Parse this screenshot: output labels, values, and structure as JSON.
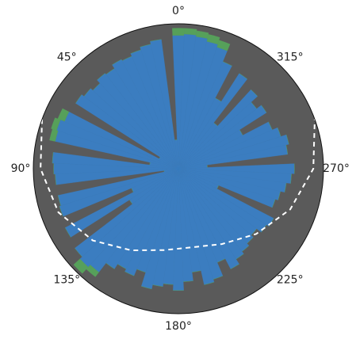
{
  "chart_data": {
    "type": "polar_bar",
    "theta_zero": "N",
    "theta_direction": "counterclockwise",
    "background": "#5a5a5a",
    "x": [
      0,
      5,
      10,
      15,
      20,
      25,
      30,
      35,
      40,
      45,
      50,
      55,
      60,
      65,
      70,
      75,
      80,
      85,
      90,
      95,
      100,
      105,
      110,
      115,
      120,
      125,
      130,
      135,
      140,
      145,
      150,
      155,
      160,
      165,
      170,
      175,
      180,
      185,
      190,
      195,
      200,
      205,
      210,
      215,
      220,
      225,
      230,
      235,
      240,
      245,
      250,
      255,
      260,
      265,
      270,
      275,
      280,
      285,
      290,
      295,
      300,
      305,
      310,
      315,
      320,
      325,
      330,
      335,
      340,
      345,
      350,
      355
    ],
    "bar_width": 5,
    "ylim": [
      0,
      1
    ],
    "xticks": [
      {
        "value": 0,
        "label": "0°"
      },
      {
        "value": 45,
        "label": "45°"
      },
      {
        "value": 90,
        "label": "90°"
      },
      {
        "value": 135,
        "label": "135°"
      },
      {
        "value": 180,
        "label": "180°"
      },
      {
        "value": 225,
        "label": "225°"
      },
      {
        "value": 270,
        "label": "270°"
      },
      {
        "value": 315,
        "label": "315°"
      }
    ],
    "series": [
      {
        "color": "#3b7dc0",
        "values": [
          0.92,
          0.2,
          0.9,
          0.88,
          0.86,
          0.84,
          0.85,
          0.82,
          0.83,
          0.8,
          0.82,
          0.84,
          0.15,
          0.85,
          0.88,
          0.87,
          0.2,
          0.87,
          0.86,
          0.85,
          0.1,
          0.85,
          0.86,
          0.35,
          0.88,
          0.4,
          0.9,
          0.92,
          0.9,
          0.82,
          0.78,
          0.8,
          0.75,
          0.85,
          0.82,
          0.8,
          0.84,
          0.78,
          0.72,
          0.82,
          0.8,
          0.7,
          0.78,
          0.74,
          0.72,
          0.7,
          0.68,
          0.72,
          0.74,
          0.3,
          0.7,
          0.72,
          0.75,
          0.78,
          0.8,
          0.2,
          0.76,
          0.78,
          0.74,
          0.7,
          0.5,
          0.72,
          0.68,
          0.74,
          0.4,
          0.78,
          0.55,
          0.8,
          0.88,
          0.9,
          0.92,
          0.93
        ]
      },
      {
        "color": "#56a05a",
        "values": [
          0.05,
          0,
          0,
          0,
          0,
          0,
          0,
          0,
          0,
          0,
          0,
          0,
          0,
          0.05,
          0.04,
          0.04,
          0,
          0,
          0,
          0,
          0,
          0,
          0,
          0,
          0,
          0,
          0,
          0.06,
          0.04,
          0,
          0,
          0,
          0,
          0,
          0,
          0,
          0,
          0,
          0,
          0,
          0,
          0,
          0,
          0,
          0,
          0,
          0,
          0,
          0,
          0,
          0,
          0,
          0,
          0,
          0,
          0,
          0,
          0,
          0,
          0,
          0,
          0,
          0,
          0,
          0,
          0,
          0,
          0,
          0.05,
          0.05,
          0.04,
          0.04
        ]
      }
    ],
    "line": {
      "color": "#ffffff",
      "dashed": true,
      "x": [
        70,
        90,
        110,
        130,
        150,
        170,
        190,
        210,
        230,
        250,
        270,
        290
      ],
      "values": [
        1.0,
        0.95,
        0.88,
        0.77,
        0.65,
        0.57,
        0.55,
        0.6,
        0.7,
        0.82,
        0.93,
        1.0
      ]
    }
  }
}
